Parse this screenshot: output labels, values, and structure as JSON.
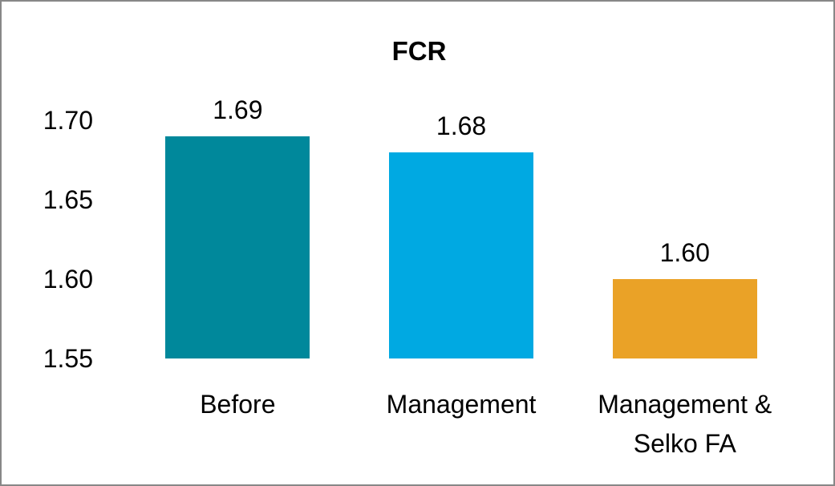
{
  "frame": {
    "border_color": "#878787",
    "background_color": "#FFFFFF",
    "text_color": "#000000"
  },
  "chart_data": {
    "type": "bar",
    "title": "FCR",
    "xlabel": "",
    "ylabel": "",
    "categories": [
      "Before",
      "Management",
      "Management &\nSelko FA"
    ],
    "values": [
      1.69,
      1.68,
      1.6
    ],
    "data_labels": [
      "1.69",
      "1.68",
      "1.60"
    ],
    "bar_colors": [
      "#00889B",
      "#00A9E2",
      "#EAA227"
    ],
    "ylim": [
      1.55,
      1.7
    ],
    "yticks": [
      1.7,
      1.65,
      1.6,
      1.55
    ],
    "ytick_labels": [
      "1.70",
      "1.65",
      "1.60",
      "1.55"
    ],
    "grid": false,
    "legend_position": "none",
    "axis_lines": false
  }
}
